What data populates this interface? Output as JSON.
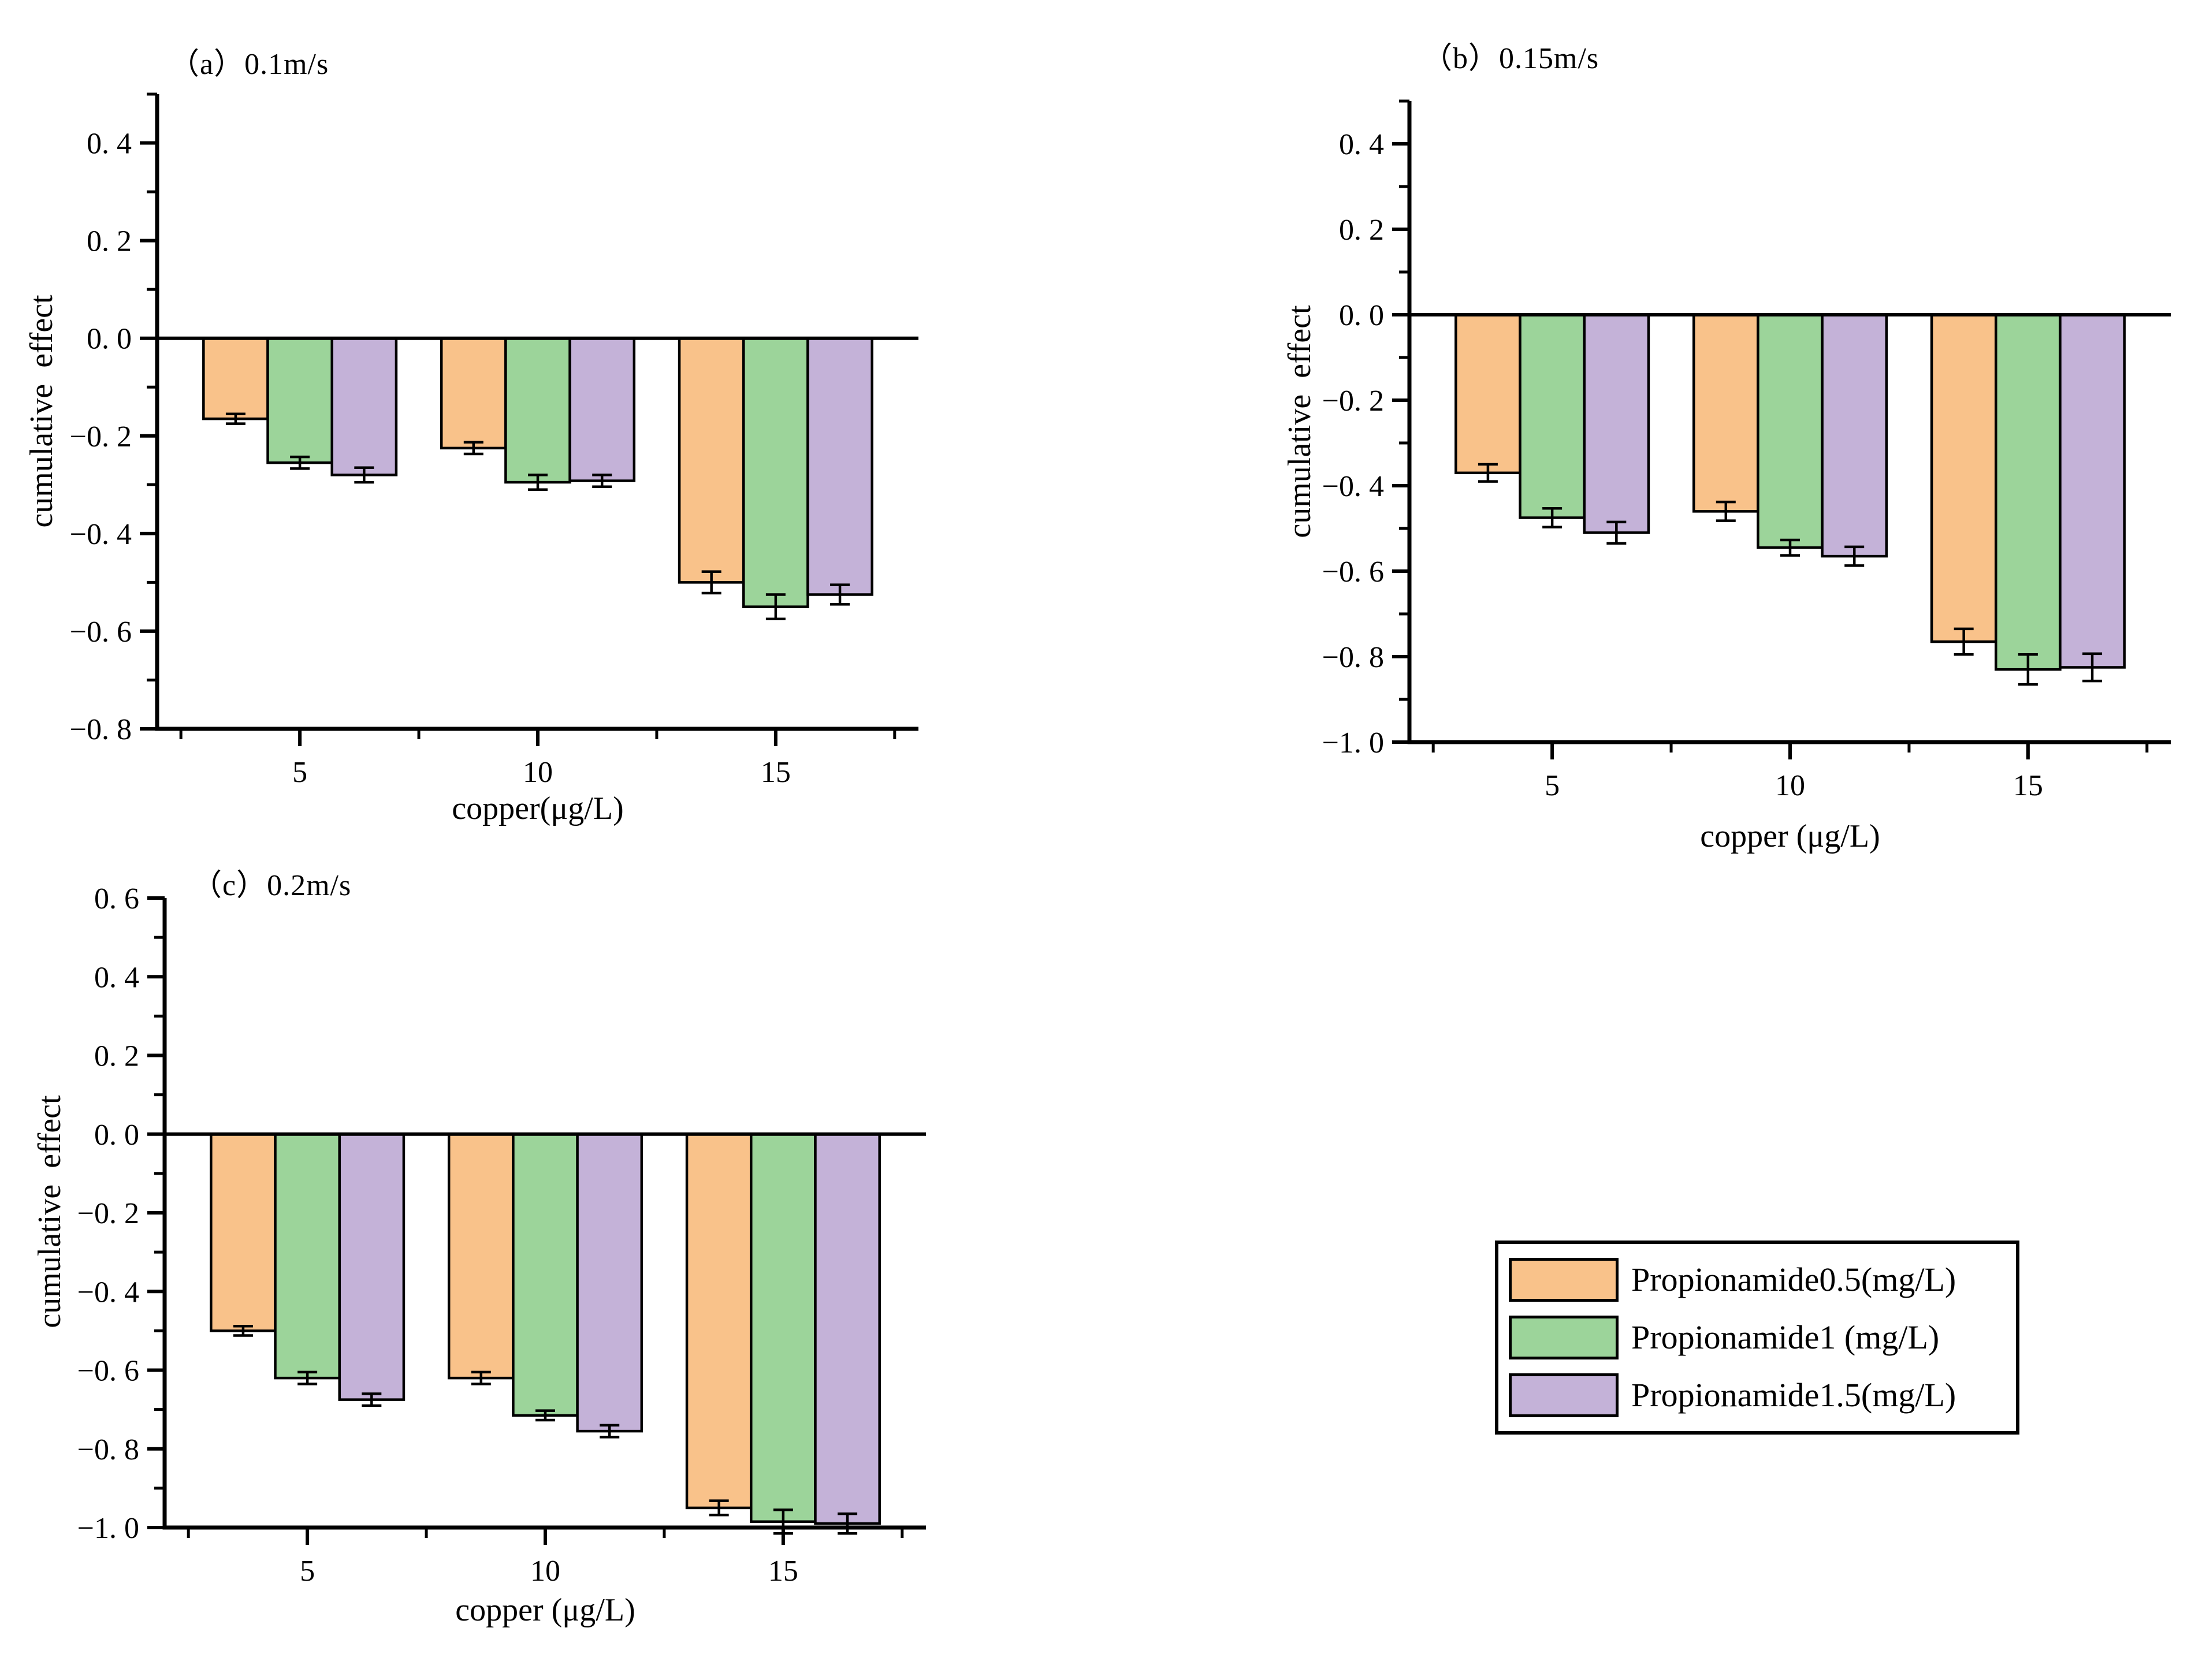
{
  "figure": {
    "background": "#ffffff",
    "text_color": "#000000"
  },
  "legend": {
    "items": [
      {
        "label": "Propionamide0.5(mg/L)",
        "color": "#F9C28A"
      },
      {
        "label": "Propionamide1 (mg/L)",
        "color": "#9CD49A"
      },
      {
        "label": "Propionamide1.5(mg/L)",
        "color": "#C4B2D8"
      }
    ]
  },
  "chart_data": [
    {
      "id": "a",
      "type": "bar",
      "title": "（a）0.1m/s",
      "xlabel": "copper(μg/L)",
      "ylabel": "cumulative  effect",
      "categories": [
        5,
        10,
        15
      ],
      "xlim": [
        2,
        18
      ],
      "ylim": [
        -0.8,
        0.5
      ],
      "grid": false,
      "bar_width": 1.35,
      "xticks": [
        {
          "v": 5,
          "label": "5"
        },
        {
          "v": 10,
          "label": "10"
        },
        {
          "v": 15,
          "label": "15"
        }
      ],
      "x_minor": [
        2.5,
        7.5,
        12.5,
        17.5
      ],
      "yticks": [
        {
          "v": 0.4,
          "label": "0. 4"
        },
        {
          "v": 0.2,
          "label": "0. 2"
        },
        {
          "v": 0.0,
          "label": "0. 0"
        },
        {
          "v": -0.2,
          "label": "−0. 2"
        },
        {
          "v": -0.4,
          "label": "−0. 4"
        },
        {
          "v": -0.6,
          "label": "−0. 6"
        },
        {
          "v": -0.8,
          "label": "−0. 8"
        }
      ],
      "y_minor_step": 0.1,
      "series": [
        {
          "name": "Propionamide0.5(mg/L)",
          "color": "#F9C28A",
          "values": [
            -0.165,
            -0.225,
            -0.5
          ],
          "errors": [
            0.01,
            0.012,
            0.022
          ]
        },
        {
          "name": "Propionamide1 (mg/L)",
          "color": "#9CD49A",
          "values": [
            -0.255,
            -0.295,
            -0.55
          ],
          "errors": [
            0.012,
            0.015,
            0.025
          ]
        },
        {
          "name": "Propionamide1.5(mg/L)",
          "color": "#C4B2D8",
          "values": [
            -0.28,
            -0.292,
            -0.525
          ],
          "errors": [
            0.015,
            0.012,
            0.02
          ]
        }
      ]
    },
    {
      "id": "b",
      "type": "bar",
      "title": "（b）0.15m/s",
      "xlabel": "copper (μg/L)",
      "ylabel": "cumulative  effect",
      "categories": [
        5,
        10,
        15
      ],
      "xlim": [
        2,
        18
      ],
      "ylim": [
        -1.0,
        0.5
      ],
      "grid": false,
      "bar_width": 1.35,
      "xticks": [
        {
          "v": 5,
          "label": "5"
        },
        {
          "v": 10,
          "label": "10"
        },
        {
          "v": 15,
          "label": "15"
        }
      ],
      "x_minor": [
        2.5,
        7.5,
        12.5,
        17.5
      ],
      "yticks": [
        {
          "v": 0.4,
          "label": "0. 4"
        },
        {
          "v": 0.2,
          "label": "0. 2"
        },
        {
          "v": 0.0,
          "label": "0. 0"
        },
        {
          "v": -0.2,
          "label": "−0. 2"
        },
        {
          "v": -0.4,
          "label": "−0. 4"
        },
        {
          "v": -0.6,
          "label": "−0. 6"
        },
        {
          "v": -0.8,
          "label": "−0. 8"
        },
        {
          "v": -1.0,
          "label": "−1. 0"
        }
      ],
      "y_minor_step": 0.1,
      "series": [
        {
          "name": "Propionamide0.5(mg/L)",
          "color": "#F9C28A",
          "values": [
            -0.37,
            -0.46,
            -0.765
          ],
          "errors": [
            0.02,
            0.022,
            0.03
          ]
        },
        {
          "name": "Propionamide1 (mg/L)",
          "color": "#9CD49A",
          "values": [
            -0.475,
            -0.545,
            -0.83
          ],
          "errors": [
            0.022,
            0.018,
            0.035
          ]
        },
        {
          "name": "Propionamide1.5(mg/L)",
          "color": "#C4B2D8",
          "values": [
            -0.51,
            -0.565,
            -0.825
          ],
          "errors": [
            0.025,
            0.022,
            0.032
          ]
        }
      ]
    },
    {
      "id": "c",
      "type": "bar",
      "title": "（c）0.2m/s",
      "xlabel": "copper (μg/L)",
      "ylabel": "cumulative  effect",
      "categories": [
        5,
        10,
        15
      ],
      "xlim": [
        2,
        18
      ],
      "ylim": [
        -1.0,
        0.6
      ],
      "grid": false,
      "bar_width": 1.35,
      "xticks": [
        {
          "v": 5,
          "label": "5"
        },
        {
          "v": 10,
          "label": "10"
        },
        {
          "v": 15,
          "label": "15"
        }
      ],
      "x_minor": [
        2.5,
        7.5,
        12.5,
        17.5
      ],
      "yticks": [
        {
          "v": 0.6,
          "label": "0. 6"
        },
        {
          "v": 0.4,
          "label": "0. 4"
        },
        {
          "v": 0.2,
          "label": "0. 2"
        },
        {
          "v": 0.0,
          "label": "0. 0"
        },
        {
          "v": -0.2,
          "label": "−0. 2"
        },
        {
          "v": -0.4,
          "label": "−0. 4"
        },
        {
          "v": -0.6,
          "label": "−0. 6"
        },
        {
          "v": -0.8,
          "label": "−0. 8"
        },
        {
          "v": -1.0,
          "label": "−1. 0"
        }
      ],
      "y_minor_step": 0.1,
      "series": [
        {
          "name": "Propionamide0.5(mg/L)",
          "color": "#F9C28A",
          "values": [
            -0.5,
            -0.62,
            -0.95
          ],
          "errors": [
            0.012,
            0.015,
            0.018
          ]
        },
        {
          "name": "Propionamide1 (mg/L)",
          "color": "#9CD49A",
          "values": [
            -0.62,
            -0.715,
            -0.985
          ],
          "errors": [
            0.015,
            0.012,
            0.03
          ]
        },
        {
          "name": "Propionamide1.5(mg/L)",
          "color": "#C4B2D8",
          "values": [
            -0.675,
            -0.755,
            -0.99
          ],
          "errors": [
            0.015,
            0.015,
            0.025
          ]
        }
      ]
    }
  ]
}
